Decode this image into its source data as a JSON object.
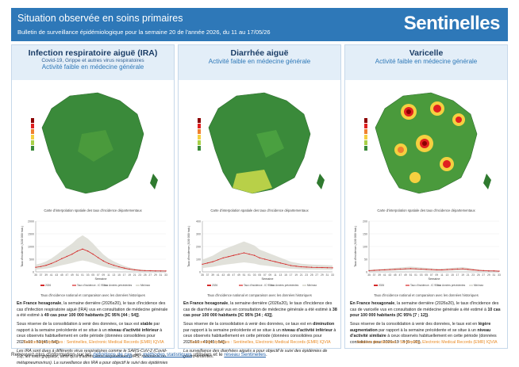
{
  "header": {
    "title": "Situation observée en soins primaires",
    "subtitle": "Bulletin de surveillance épidémiologique pour la semaine 20 de l'année 2026, du 11 au 17/05/26",
    "logo": "Sentinelles"
  },
  "panels": [
    {
      "title": "Infection respiratoire aiguë (IRA)",
      "subtitle": "Covid-19, Grippe et autres virus respiratoires",
      "activity": "Activité faible en médecine générale",
      "map_caption": "Carte d'interpolation spatiale des taux d'incidence départementaux",
      "chart_caption": "Taux d'incidence national et comparaison avec les données historiques",
      "p1": {
        "a": "En France hexagonale",
        "b": ", la semaine dernière (2026s20), le taux d'incidence des cas d'infection respiratoire aiguë (IRA) vus en consultation de médecine générale a été estimé à ",
        "c": "49 cas pour 100 000 habitants [IC 95% [44 ; 54]]",
        "d": "."
      },
      "p2": {
        "a": "Sous réserve de la consolidation à venir des données, ce taux est ",
        "b": "stable",
        "c": " par rapport à la semaine précédente et se situe à un ",
        "d": "niveau d'activité inférieur",
        "e": " à ceux observés habituellement en cette période (données consolidées pour 2026s19 : 50 [45 ; 54])."
      },
      "p3": "Les IRA sont dues à différents virus respiratoires comme le SARS-CoV-2 (Covid-19), les virus grippaux, ainsi qu'à d'autres virus respiratoires (VRS, rhinovirus ou métapneumovirus). La surveillance des IRA a pour objectif le suivi des épidémies dues à ces virus.",
      "source": "Sources des données : Sentinelles, Electronic Medical Records (EMR) IQVIA"
    },
    {
      "title": "Diarrhée aiguë",
      "subtitle": "",
      "activity": "Activité faible en médecine générale",
      "map_caption": "Carte d'interpolation spatiale des taux d'incidence départementaux",
      "chart_caption": "Taux d'incidence national et comparaison avec les données historiques",
      "p1": {
        "a": "En France hexagonale",
        "b": ", la semaine dernière (2026s20), le taux d'incidence des cas de diarrhée aiguë vus en consultation de médecine générale a été estimé à ",
        "c": "38 cas pour 100 000 habitants [IC 95% [34 ; 43]]",
        "d": "."
      },
      "p2": {
        "a": "Sous réserve de la consolidation à venir des données, ce taux est en ",
        "b": "diminution",
        "c": " par rapport à la semaine précédente et se situe à un ",
        "d": "niveau d'activité inférieur",
        "e": " à ceux observés habituellement en cette période (données consolidées pour 2026s19 : 49 [45 ; 54])."
      },
      "p3": "La surveillance des diarrhées aiguës a pour objectif le suivi des épidémies de gastro-entérites.",
      "source": "Sources des données : Sentinelles, Electronic Medical Records (EMR) IQVIA"
    },
    {
      "title": "Varicelle",
      "subtitle": "",
      "activity": "Activité faible en médecine générale",
      "map_caption": "Carte d'interpolation spatiale des taux d'incidence départementaux",
      "chart_caption": "Taux d'incidence national et comparaison avec les données historiques",
      "p1": {
        "a": "En France hexagonale",
        "b": ", la semaine dernière (2026s20), le taux d'incidence des cas de varicelle vus en consultation de médecine générale a été estimé à ",
        "c": "10 cas pour 100 000 habitants (IC 95% [7 ; 12])",
        "d": "."
      },
      "p2": {
        "a": "Sous réserve de la consolidation à venir des données, le taux est en ",
        "b": "légère augmentation",
        "c": " par rapport à la semaine précédente et se situe à un ",
        "d": "niveau d'activité similaire",
        "e": " à ceux observés habituellement en cette période (données consolidées pour 2026s19 : 8 [6 ; 10])."
      },
      "p3": "",
      "source": "Sources des données : Sentinelles, Electronic Medical Records (EMR) IQVIA"
    }
  ],
  "footer": {
    "a": "Retrouvez plus d'information sur les ",
    "link1": "définitions de cas",
    "b": ", les ",
    "link2": "méthodes statistiques",
    "c": " utilisées et le ",
    "link3": "réseau Sentinelles",
    "d": "."
  },
  "chart_data": [
    {
      "type": "line",
      "panel": "Infection respiratoire aiguë (IRA)",
      "ylabel": "Taux d'incidence (/100 000 hab.)",
      "xlabel": "Semaine",
      "ylim": [
        0,
        2000
      ],
      "yticks": [
        "0",
        "500",
        "1000",
        "1500",
        "2000"
      ],
      "x": [
        "35",
        "37",
        "39",
        "41",
        "43",
        "45",
        "47",
        "49",
        "51",
        "01",
        "03",
        "05",
        "07",
        "09",
        "11",
        "13",
        "15",
        "17",
        "19",
        "21",
        "23",
        "25",
        "27",
        "29",
        "31",
        "33"
      ],
      "series": [
        {
          "name": "2026",
          "values": [
            null,
            null,
            null,
            null,
            null,
            null,
            null,
            null,
            null,
            null,
            null,
            null,
            null,
            null,
            null,
            null,
            null,
            null,
            null,
            null,
            null,
            null,
            null,
            null,
            null,
            null
          ]
        },
        {
          "name": "Taux d'incidence - IC 95%",
          "values": [
            180,
            210,
            260,
            330,
            420,
            520,
            610,
            700,
            820,
            900,
            820,
            700,
            560,
            430,
            330,
            260,
            200,
            150,
            110,
            80,
            60,
            50,
            45,
            40,
            38,
            36
          ]
        }
      ],
      "legend": [
        "2026",
        "Taux d'incidence - IC 95%",
        "Années précédentes",
        "Min/max"
      ]
    },
    {
      "type": "line",
      "panel": "Diarrhée aiguë",
      "ylabel": "Taux d'incidence (/100 000 hab.)",
      "xlabel": "Semaine",
      "ylim": [
        0,
        400
      ],
      "yticks": [
        "0",
        "100",
        "200",
        "300",
        "400"
      ],
      "x": [
        "35",
        "37",
        "39",
        "41",
        "43",
        "45",
        "47",
        "49",
        "51",
        "01",
        "03",
        "05",
        "07",
        "09",
        "11",
        "13",
        "15",
        "17",
        "19",
        "21",
        "23",
        "25",
        "27",
        "29",
        "31",
        "33"
      ],
      "series": [
        {
          "name": "Taux d'incidence - IC 95%",
          "values": [
            60,
            70,
            80,
            95,
            110,
            120,
            130,
            140,
            150,
            140,
            130,
            110,
            100,
            90,
            80,
            70,
            60,
            50,
            45,
            40,
            38,
            36,
            35,
            34,
            33,
            32
          ]
        }
      ],
      "legend": [
        "2026",
        "Taux d'incidence - IC 95%",
        "Années précédentes",
        "Min/max"
      ]
    },
    {
      "type": "line",
      "panel": "Varicelle",
      "ylabel": "Taux d'incidence (/100 000 hab.)",
      "xlabel": "Semaine",
      "ylim": [
        0,
        200
      ],
      "yticks": [
        "0",
        "50",
        "100",
        "150",
        "200"
      ],
      "x": [
        "35",
        "37",
        "39",
        "41",
        "43",
        "45",
        "47",
        "49",
        "51",
        "01",
        "03",
        "05",
        "07",
        "09",
        "11",
        "13",
        "15",
        "17",
        "19",
        "21",
        "23",
        "25",
        "27",
        "29",
        "31",
        "33"
      ],
      "series": [
        {
          "name": "Taux d'incidence - IC 95%",
          "values": [
            5,
            6,
            7,
            8,
            9,
            10,
            11,
            12,
            13,
            12,
            11,
            10,
            9,
            8,
            8,
            9,
            10,
            11,
            12,
            10,
            8,
            6,
            5,
            4,
            4,
            3
          ]
        }
      ],
      "legend": [
        "2026",
        "Taux d'incidence - IC 95%",
        "Années précédentes",
        "Min/max"
      ]
    }
  ]
}
